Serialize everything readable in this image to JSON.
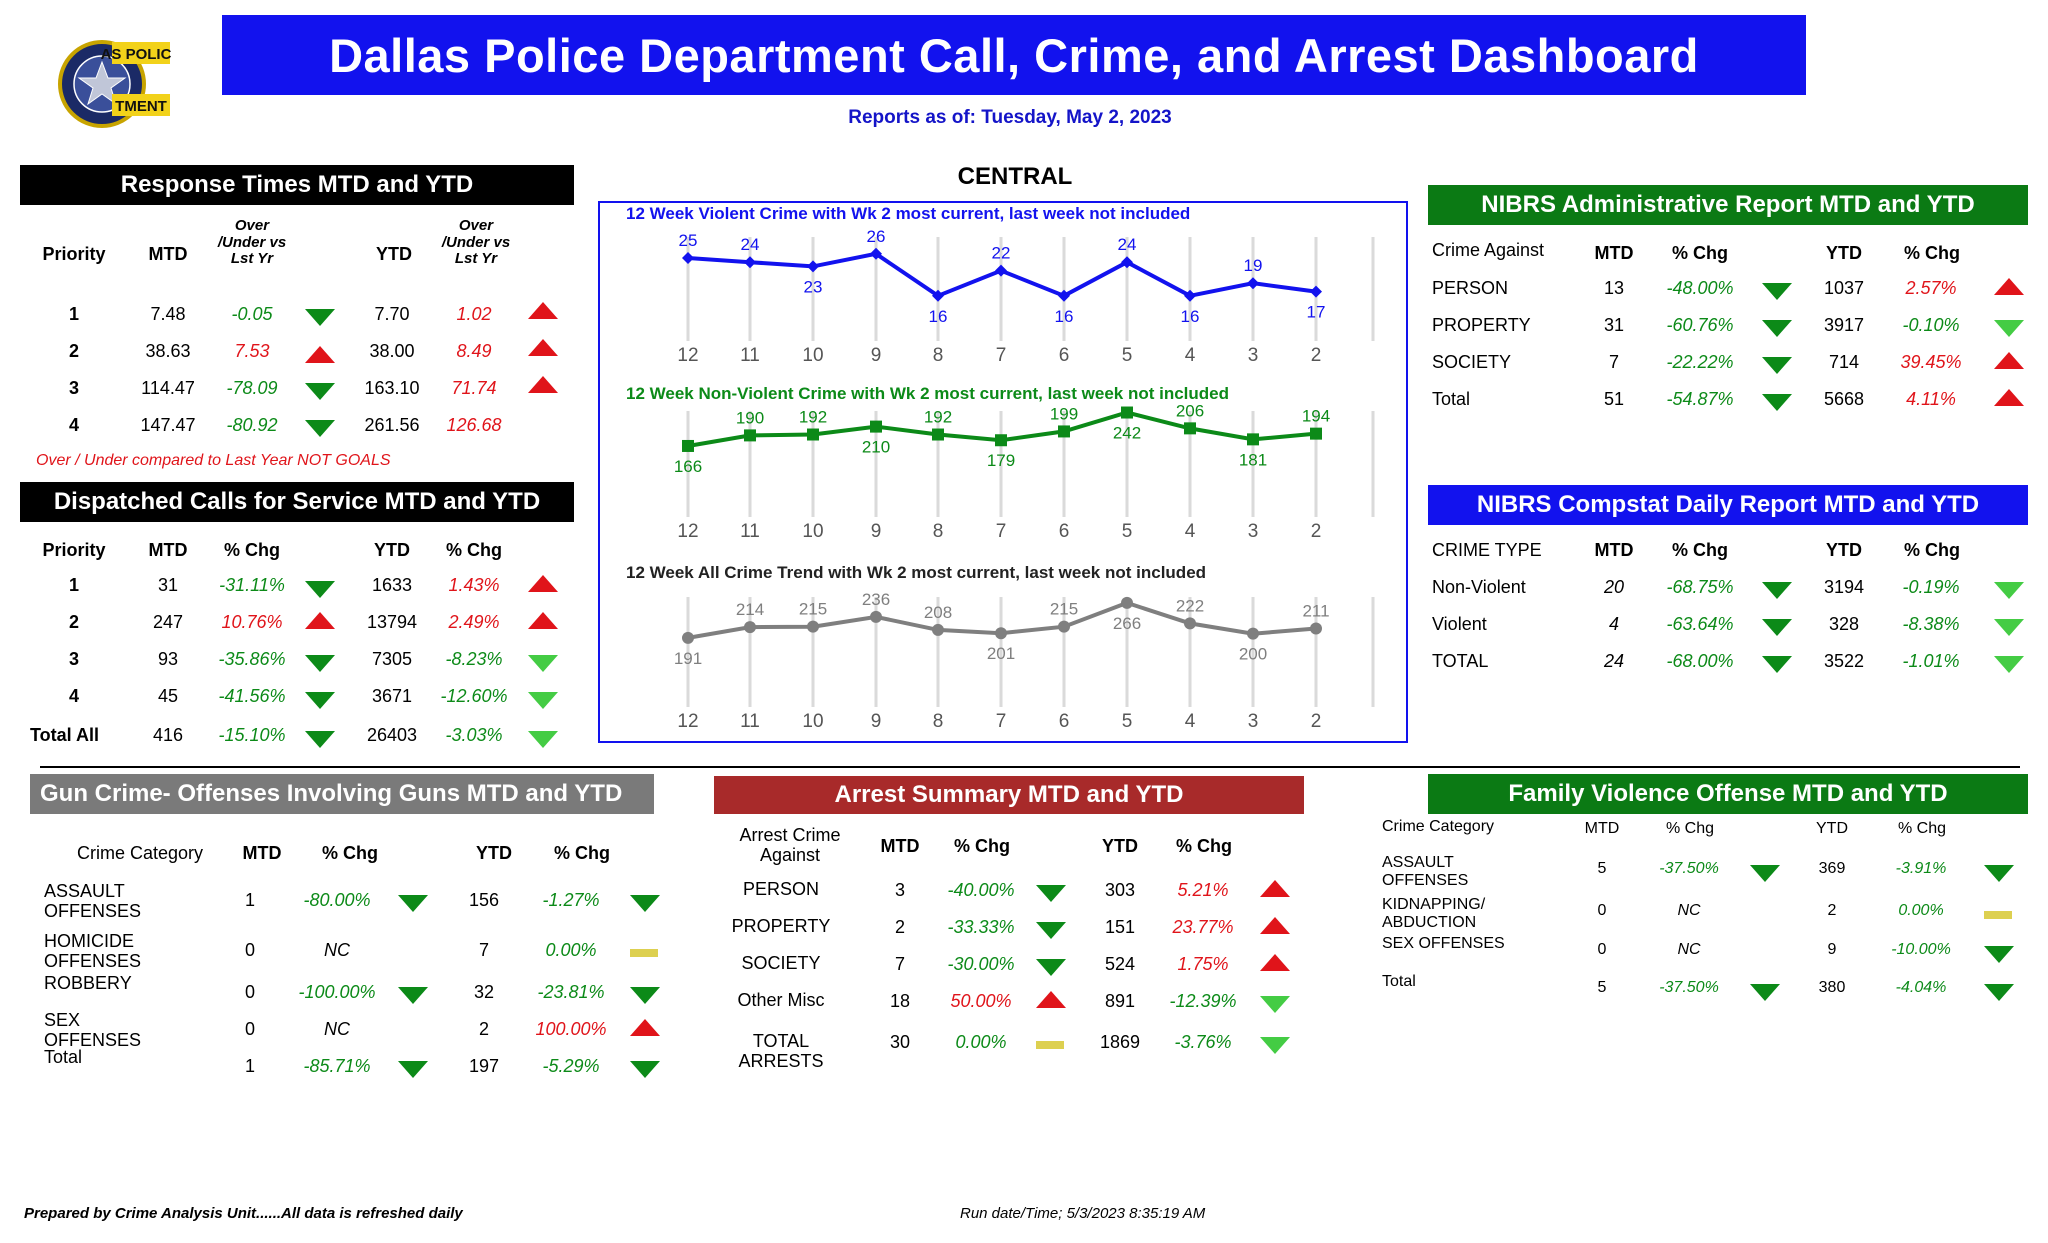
{
  "header": {
    "title": "Dallas Police Department Call, Crime, and Arrest Dashboard",
    "report_date": "Reports as of:  Tuesday, May 2, 2023",
    "logo_text": "DALLAS POLICE DEPARTMENT"
  },
  "central_label": "CENTRAL",
  "response_times": {
    "title": "Response Times MTD and YTD",
    "headers": [
      "Priority",
      "MTD",
      "Over /Under vs  Lst Yr",
      "YTD",
      "Over /Under vs  Lst Yr"
    ],
    "rows": [
      {
        "priority": "1",
        "mtd": "7.48",
        "mtd_chg": "-0.05",
        "mtd_dir": "down",
        "ytd": "7.70",
        "ytd_chg": "1.02",
        "ytd_dir": "up"
      },
      {
        "priority": "2",
        "mtd": "38.63",
        "mtd_chg": "7.53",
        "mtd_dir": "up",
        "ytd": "38.00",
        "ytd_chg": "8.49",
        "ytd_dir": "up"
      },
      {
        "priority": "3",
        "mtd": "114.47",
        "mtd_chg": "-78.09",
        "mtd_dir": "down",
        "ytd": "163.10",
        "ytd_chg": "71.74",
        "ytd_dir": "up"
      },
      {
        "priority": "4",
        "mtd": "147.47",
        "mtd_chg": "-80.92",
        "mtd_dir": "down",
        "ytd": "261.56",
        "ytd_chg": "126.68",
        "ytd_dir": "none"
      }
    ],
    "note": "Over / Under compared to Last Year NOT GOALS"
  },
  "dispatched_calls": {
    "title": "Dispatched Calls for Service MTD and YTD",
    "headers": [
      "Priority",
      "MTD",
      "% Chg",
      "YTD",
      "% Chg"
    ],
    "rows": [
      {
        "priority": "1",
        "mtd": "31",
        "mtd_chg": "-31.11%",
        "ytd": "1633",
        "ytd_chg": "1.43%"
      },
      {
        "priority": "2",
        "mtd": "247",
        "mtd_chg": "10.76%",
        "ytd": "13794",
        "ytd_chg": "2.49%"
      },
      {
        "priority": "3",
        "mtd": "93",
        "mtd_chg": "-35.86%",
        "ytd": "7305",
        "ytd_chg": "-8.23%"
      },
      {
        "priority": "4",
        "mtd": "45",
        "mtd_chg": "-41.56%",
        "ytd": "3671",
        "ytd_chg": "-12.60%"
      },
      {
        "priority": "Total  All",
        "mtd": "416",
        "mtd_chg": "-15.10%",
        "ytd": "26403",
        "ytd_chg": "-3.03%"
      }
    ]
  },
  "nibrs_admin": {
    "title": "NIBRS Administrative Report MTD and YTD",
    "headers": [
      "Crime Against",
      "MTD",
      "% Chg",
      "YTD",
      "% Chg"
    ],
    "rows": [
      {
        "label": "PERSON",
        "mtd": "13",
        "mtd_chg": "-48.00%",
        "ytd": "1037",
        "ytd_chg": "2.57%"
      },
      {
        "label": "PROPERTY",
        "mtd": "31",
        "mtd_chg": "-60.76%",
        "ytd": "3917",
        "ytd_chg": "-0.10%"
      },
      {
        "label": "SOCIETY",
        "mtd": "7",
        "mtd_chg": "-22.22%",
        "ytd": "714",
        "ytd_chg": "39.45%"
      },
      {
        "label": "Total",
        "mtd": "51",
        "mtd_chg": "-54.87%",
        "ytd": "5668",
        "ytd_chg": "4.11%"
      }
    ]
  },
  "nibrs_compstat": {
    "title": "NIBRS Compstat Daily Report MTD and YTD",
    "headers": [
      "CRIME TYPE",
      "MTD",
      "% Chg",
      "YTD",
      "% Chg"
    ],
    "rows": [
      {
        "label": "Non-Violent",
        "mtd": "20",
        "mtd_chg": "-68.75%",
        "ytd": "3194",
        "ytd_chg": "-0.19%"
      },
      {
        "label": "Violent",
        "mtd": "4",
        "mtd_chg": "-63.64%",
        "ytd": "328",
        "ytd_chg": "-8.38%"
      },
      {
        "label": "TOTAL",
        "mtd": "24",
        "mtd_chg": "-68.00%",
        "ytd": "3522",
        "ytd_chg": "-1.01%"
      }
    ]
  },
  "gun_crime": {
    "title": "Gun Crime- Offenses Involving Guns MTD and  YTD",
    "headers": [
      "Crime Category",
      "MTD",
      "% Chg",
      "YTD",
      "% Chg"
    ],
    "rows": [
      {
        "label": "ASSAULT OFFENSES",
        "mtd": "1",
        "mtd_chg": "-80.00%",
        "ytd": "156",
        "ytd_chg": "-1.27%"
      },
      {
        "label": "HOMICIDE OFFENSES",
        "mtd": "0",
        "mtd_chg": "NC",
        "ytd": "7",
        "ytd_chg": "0.00%"
      },
      {
        "label": "ROBBERY",
        "mtd": "0",
        "mtd_chg": "-100.00%",
        "ytd": "32",
        "ytd_chg": "-23.81%"
      },
      {
        "label": "SEX OFFENSES",
        "mtd": "0",
        "mtd_chg": "NC",
        "ytd": "2",
        "ytd_chg": "100.00%"
      },
      {
        "label": "Total",
        "mtd": "1",
        "mtd_chg": "-85.71%",
        "ytd": "197",
        "ytd_chg": "-5.29%"
      }
    ]
  },
  "arrest_summary": {
    "title": "Arrest Summary MTD and YTD",
    "headers": [
      "Arrest Crime Against",
      "MTD",
      "% Chg",
      "YTD",
      "% Chg"
    ],
    "rows": [
      {
        "label": "PERSON",
        "mtd": "3",
        "mtd_chg": "-40.00%",
        "ytd": "303",
        "ytd_chg": "5.21%"
      },
      {
        "label": "PROPERTY",
        "mtd": "2",
        "mtd_chg": "-33.33%",
        "ytd": "151",
        "ytd_chg": "23.77%"
      },
      {
        "label": "SOCIETY",
        "mtd": "7",
        "mtd_chg": "-30.00%",
        "ytd": "524",
        "ytd_chg": "1.75%"
      },
      {
        "label": "Other Misc",
        "mtd": "18",
        "mtd_chg": "50.00%",
        "ytd": "891",
        "ytd_chg": "-12.39%"
      },
      {
        "label": "TOTAL ARRESTS",
        "mtd": "30",
        "mtd_chg": "0.00%",
        "ytd": "1869",
        "ytd_chg": "-3.76%"
      }
    ]
  },
  "family_violence": {
    "title": "Family Violence Offense MTD and YTD",
    "headers": [
      "Crime Category",
      "MTD",
      "% Chg",
      "YTD",
      "% Chg"
    ],
    "rows": [
      {
        "label": "ASSAULT OFFENSES",
        "mtd": "5",
        "mtd_chg": "-37.50%",
        "ytd": "369",
        "ytd_chg": "-3.91%"
      },
      {
        "label": "KIDNAPPING/ ABDUCTION",
        "mtd": "0",
        "mtd_chg": "NC",
        "ytd": "2",
        "ytd_chg": "0.00%"
      },
      {
        "label": "SEX OFFENSES",
        "mtd": "0",
        "mtd_chg": "NC",
        "ytd": "9",
        "ytd_chg": "-10.00%"
      },
      {
        "label": "Total",
        "mtd": "5",
        "mtd_chg": "-37.50%",
        "ytd": "380",
        "ytd_chg": "-4.04%"
      }
    ]
  },
  "chart_data": [
    {
      "type": "line",
      "title": "12 Week Violent Crime with Wk 2 most current, last week not included",
      "x": [
        "12",
        "11",
        "10",
        "9",
        "8",
        "7",
        "6",
        "5",
        "4",
        "3",
        "2"
      ],
      "series": [
        {
          "values": [
            25,
            24,
            23,
            26,
            16,
            22,
            16,
            24,
            16,
            19,
            17
          ]
        }
      ],
      "color": "#1212ee",
      "marker": "diamond"
    },
    {
      "type": "line",
      "title": "12 Week Non-Violent Crime with Wk 2 most current, last week not included",
      "x": [
        "12",
        "11",
        "10",
        "9",
        "8",
        "7",
        "6",
        "5",
        "4",
        "3",
        "2"
      ],
      "series": [
        {
          "values": [
            166,
            190,
            192,
            210,
            192,
            179,
            199,
            242,
            206,
            181,
            194
          ]
        }
      ],
      "color": "#0c8a18",
      "marker": "square"
    },
    {
      "type": "line",
      "title": "12 Week All Crime Trend with Wk 2 most current, last week not included",
      "x": [
        "12",
        "11",
        "10",
        "9",
        "8",
        "7",
        "6",
        "5",
        "4",
        "3",
        "2"
      ],
      "series": [
        {
          "values": [
            191,
            214,
            215,
            236,
            208,
            201,
            215,
            266,
            222,
            200,
            211
          ]
        }
      ],
      "color": "#7f7f7f",
      "marker": "circle"
    }
  ],
  "footer": {
    "prepared_by": "Prepared by Crime Analysis Unit......All data is refreshed daily",
    "run_date": "Run date/Time; 5/3/2023 8:35:19 AM"
  }
}
